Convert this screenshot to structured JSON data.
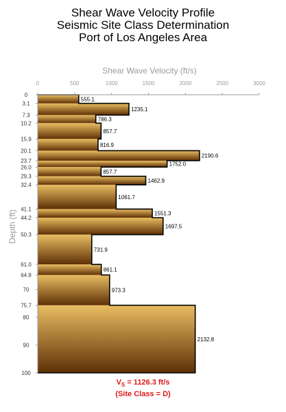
{
  "title": {
    "line1": "Shear Wave Velocity Profile",
    "line2": "Seismic Site Class Determination",
    "line3": "Port of Los Angeles Area"
  },
  "footer": {
    "vs_label": "V",
    "vs_subscript": "S",
    "vs_value": " = 1126.3 ft/s",
    "site_class": "(Site Class = D)"
  },
  "colors": {
    "gradient_top": "#e9bd62",
    "gradient_bottom": "#5e3006",
    "axis_text": "#9a9a9a",
    "footer": "#e01818"
  },
  "chart_data": {
    "type": "step",
    "title": "Shear Wave Velocity Profile",
    "xlabel": "Shear Wave Velocity (ft/s)",
    "ylabel": "Depth (ft)",
    "xlim": [
      0,
      3000
    ],
    "ylim": [
      0,
      100
    ],
    "x_ticks": [
      "0",
      "500",
      "1000",
      "1500",
      "2000",
      "2500",
      "3000"
    ],
    "y_ticks": [
      "0",
      "3.1",
      "7.3",
      "10.2",
      "15.9",
      "20.1",
      "23.7",
      "26.0",
      "29.3",
      "32.4",
      "41.1",
      "44.2",
      "50.3",
      "61.0",
      "64.8",
      "70",
      "75.7",
      "80",
      "90",
      "100"
    ],
    "layers": [
      {
        "top": 0,
        "bottom": 3.1,
        "velocity": 555.1,
        "label": "555.1"
      },
      {
        "top": 3.1,
        "bottom": 7.3,
        "velocity": 1235.1,
        "label": "1235.1"
      },
      {
        "top": 7.3,
        "bottom": 10.2,
        "velocity": 786.3,
        "label": "786.3"
      },
      {
        "top": 10.2,
        "bottom": 15.9,
        "velocity": 857.7,
        "label": "857.7"
      },
      {
        "top": 15.9,
        "bottom": 20.1,
        "velocity": 816.9,
        "label": "816.9"
      },
      {
        "top": 20.1,
        "bottom": 23.7,
        "velocity": 2190.6,
        "label": "2190.6"
      },
      {
        "top": 23.7,
        "bottom": 26.0,
        "velocity": 1752.0,
        "label": "1752.0"
      },
      {
        "top": 26.0,
        "bottom": 29.3,
        "velocity": 857.7,
        "label": "857.7"
      },
      {
        "top": 29.3,
        "bottom": 32.4,
        "velocity": 1462.9,
        "label": "1462.9"
      },
      {
        "top": 32.4,
        "bottom": 41.1,
        "velocity": 1061.7,
        "label": "1061.7"
      },
      {
        "top": 41.1,
        "bottom": 44.2,
        "velocity": 1551.3,
        "label": "1551.3"
      },
      {
        "top": 44.2,
        "bottom": 50.3,
        "velocity": 1697.5,
        "label": "1697.5"
      },
      {
        "top": 50.3,
        "bottom": 61.0,
        "velocity": 731.9,
        "label": "731.9"
      },
      {
        "top": 61.0,
        "bottom": 64.8,
        "velocity": 861.1,
        "label": "861.1"
      },
      {
        "top": 64.8,
        "bottom": 75.7,
        "velocity": 973.3,
        "label": "973.3"
      },
      {
        "top": 75.7,
        "bottom": 100,
        "velocity": 2132.8,
        "label": "2132.8"
      }
    ]
  }
}
